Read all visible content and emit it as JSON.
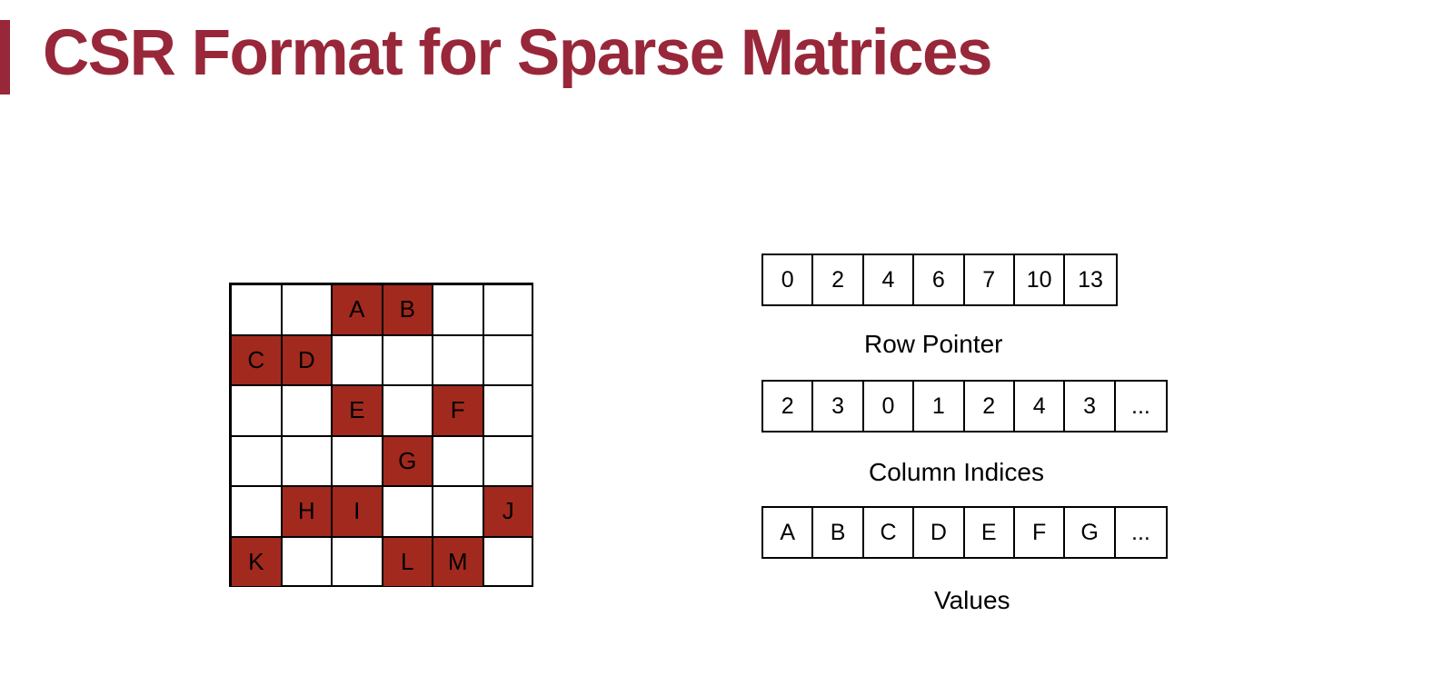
{
  "title": "CSR Format for Sparse Matrices",
  "colors": {
    "accent": "#98273a",
    "cell_fill": "#a2291e"
  },
  "matrix": {
    "rows": [
      [
        "",
        "",
        "A",
        "B",
        "",
        ""
      ],
      [
        "C",
        "D",
        "",
        "",
        "",
        ""
      ],
      [
        "",
        "",
        "E",
        "",
        "F",
        ""
      ],
      [
        "",
        "",
        "",
        "G",
        "",
        ""
      ],
      [
        "",
        "H",
        "I",
        "",
        "",
        "J"
      ],
      [
        "K",
        "",
        "",
        "L",
        "M",
        ""
      ]
    ]
  },
  "row_pointer": {
    "label": "Row Pointer",
    "values": [
      "0",
      "2",
      "4",
      "6",
      "7",
      "10",
      "13"
    ]
  },
  "column_indices": {
    "label": "Column Indices",
    "values": [
      "2",
      "3",
      "0",
      "1",
      "2",
      "4",
      "3",
      "..."
    ]
  },
  "values": {
    "label": "Values",
    "values": [
      "A",
      "B",
      "C",
      "D",
      "E",
      "F",
      "G",
      "..."
    ]
  }
}
